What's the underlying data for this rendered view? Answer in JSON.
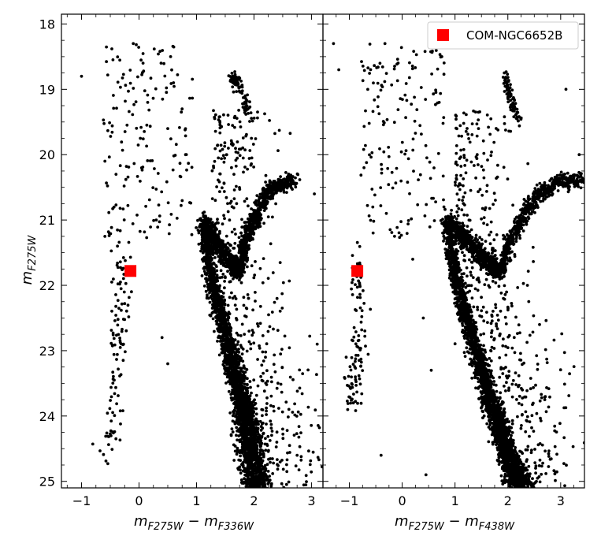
{
  "figure": {
    "ylabel_main": "m",
    "ylabel_sub": "F275W"
  },
  "chart_data": [
    {
      "type": "scatter",
      "panel": "left",
      "xlabel_main": "m",
      "xlabel_sub1": "F275W",
      "xlabel_minus": " − m",
      "xlabel_sub2": "F336W",
      "xlim": [
        -1.35,
        3.2
      ],
      "ylim": [
        25.1,
        17.85
      ],
      "y_inverted": true,
      "xticks": [
        -1,
        0,
        1,
        2,
        3
      ],
      "xtick_labels": [
        "−1",
        "0",
        "1",
        "2",
        "3"
      ],
      "yticks": [
        18,
        19,
        20,
        21,
        22,
        23,
        24,
        25
      ],
      "ytick_labels": [
        "18",
        "19",
        "20",
        "21",
        "22",
        "23",
        "24",
        "25"
      ],
      "grid": false,
      "series": [
        {
          "role": "cluster-stars",
          "color": "#000000",
          "marker": "circle",
          "structure": {
            "ms_line": [
              [
                1.12,
                21.0
              ],
              [
                1.2,
                21.6
              ],
              [
                1.35,
                22.2
              ],
              [
                1.55,
                22.9
              ],
              [
                1.72,
                23.5
              ],
              [
                1.85,
                24.0
              ],
              [
                1.95,
                24.5
              ],
              [
                2.05,
                25.1
              ]
            ],
            "sgb_line": [
              [
                1.12,
                21.0
              ],
              [
                1.3,
                21.3
              ],
              [
                1.55,
                21.6
              ],
              [
                1.75,
                21.8
              ]
            ],
            "rgb_line": [
              [
                1.75,
                21.8
              ],
              [
                1.85,
                21.3
              ],
              [
                2.05,
                20.9
              ],
              [
                2.3,
                20.5
              ],
              [
                2.7,
                20.4
              ]
            ],
            "hb_clump": [
              [
                1.6,
                18.8
              ],
              [
                1.75,
                18.95
              ],
              [
                1.9,
                19.3
              ]
            ],
            "bss_sequence": [
              [
                -0.55,
                24.5
              ],
              [
                -0.45,
                23.8
              ],
              [
                -0.35,
                23.0
              ],
              [
                -0.35,
                22.3
              ],
              [
                -0.3,
                21.4
              ]
            ]
          },
          "values_sample": [
            [
              -1.0,
              18.8
            ],
            [
              -0.1,
              18.3
            ],
            [
              0.15,
              19.2
            ],
            [
              0.55,
              18.5
            ],
            [
              0.6,
              18.9
            ],
            [
              0.75,
              19.3
            ],
            [
              0.5,
              19.6
            ],
            [
              0.3,
              21.0
            ],
            [
              -0.4,
              20.3
            ],
            [
              0.4,
              22.8
            ],
            [
              0.5,
              23.2
            ],
            [
              2.2,
              23.1
            ],
            [
              2.5,
              24.2
            ],
            [
              2.75,
              24.6
            ],
            [
              3.1,
              22.9
            ],
            [
              3.05,
              20.6
            ]
          ]
        },
        {
          "name": "COM-NGC6652B",
          "color": "#ff0000",
          "marker": "square",
          "values": [
            [
              -0.15,
              21.78
            ]
          ]
        }
      ]
    },
    {
      "type": "scatter",
      "panel": "right",
      "xlabel_main": "m",
      "xlabel_sub1": "F275W",
      "xlabel_minus": " − m",
      "xlabel_sub2": "F438W",
      "xlim": [
        -1.5,
        3.45
      ],
      "ylim": [
        25.1,
        17.85
      ],
      "y_inverted": true,
      "xticks": [
        -1,
        0,
        1,
        2,
        3
      ],
      "xtick_labels": [
        "−1",
        "0",
        "1",
        "2",
        "3"
      ],
      "yticks": [
        18,
        19,
        20,
        21,
        22,
        23,
        24,
        25
      ],
      "grid": false,
      "legend": {
        "placement": "top-right",
        "entries": [
          "COM-NGC6652B"
        ]
      },
      "series": [
        {
          "role": "cluster-stars",
          "color": "#000000",
          "marker": "circle",
          "structure": {
            "ms_line": [
              [
                0.85,
                21.0
              ],
              [
                0.95,
                21.6
              ],
              [
                1.15,
                22.3
              ],
              [
                1.4,
                23.0
              ],
              [
                1.65,
                23.7
              ],
              [
                1.9,
                24.3
              ],
              [
                2.1,
                24.8
              ],
              [
                2.25,
                25.1
              ]
            ],
            "sgb_line": [
              [
                0.85,
                21.0
              ],
              [
                1.2,
                21.3
              ],
              [
                1.55,
                21.6
              ],
              [
                1.85,
                21.8
              ]
            ],
            "rgb_line": [
              [
                1.85,
                21.8
              ],
              [
                2.05,
                21.3
              ],
              [
                2.3,
                20.9
              ],
              [
                2.6,
                20.6
              ],
              [
                3.0,
                20.4
              ],
              [
                3.4,
                20.4
              ]
            ],
            "hb_clump": [
              [
                1.95,
                18.8
              ],
              [
                2.05,
                19.1
              ],
              [
                2.2,
                19.5
              ]
            ],
            "bss_sequence": [
              [
                -0.95,
                23.8
              ],
              [
                -0.8,
                22.8
              ],
              [
                -0.85,
                21.5
              ]
            ]
          },
          "values_sample": [
            [
              -1.3,
              18.3
            ],
            [
              -1.2,
              18.7
            ],
            [
              0.2,
              21.6
            ],
            [
              0.55,
              23.3
            ],
            [
              0.4,
              22.5
            ],
            [
              0.7,
              19.2
            ],
            [
              0.75,
              18.5
            ],
            [
              2.6,
              22.6
            ],
            [
              3.1,
              19.0
            ],
            [
              3.35,
              20.0
            ],
            [
              -0.4,
              24.6
            ],
            [
              0.45,
              24.9
            ],
            [
              -0.3,
              20.9
            ]
          ]
        },
        {
          "name": "COM-NGC6652B",
          "color": "#ff0000",
          "marker": "square",
          "values": [
            [
              -0.85,
              21.78
            ]
          ]
        }
      ]
    }
  ]
}
